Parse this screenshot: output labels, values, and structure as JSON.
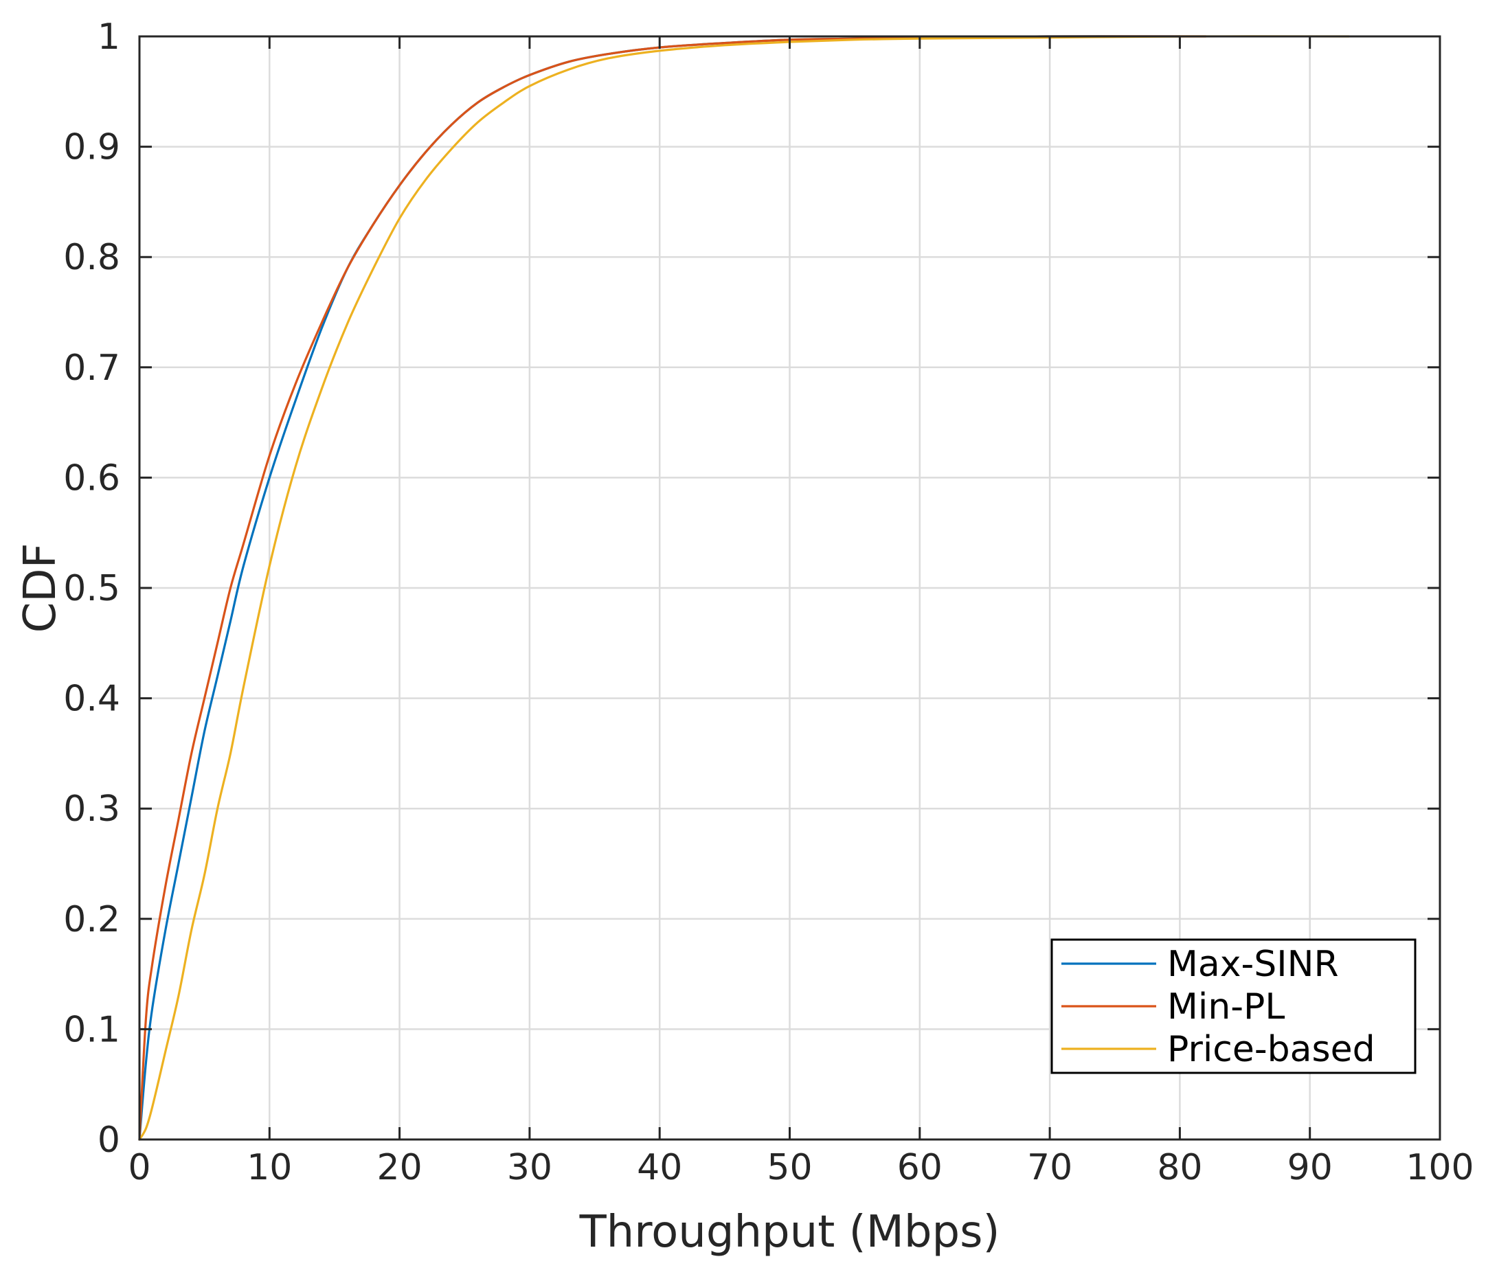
{
  "chart_data": {
    "type": "line",
    "title": "",
    "xlabel": "Throughput (Mbps)",
    "ylabel": "CDF",
    "xlim": [
      0,
      100
    ],
    "ylim": [
      0,
      1
    ],
    "xticks": [
      0,
      10,
      20,
      30,
      40,
      50,
      60,
      70,
      80,
      90,
      100
    ],
    "xtick_labels": [
      "0",
      "10",
      "20",
      "30",
      "40",
      "50",
      "60",
      "70",
      "80",
      "90",
      "100"
    ],
    "yticks": [
      0,
      0.1,
      0.2,
      0.3,
      0.4,
      0.5,
      0.6,
      0.7,
      0.8,
      0.9,
      1
    ],
    "ytick_labels": [
      "0",
      "0.1",
      "0.2",
      "0.3",
      "0.4",
      "0.5",
      "0.6",
      "0.7",
      "0.8",
      "0.9",
      "1"
    ],
    "grid": true,
    "legend_position": "bottom-right",
    "series": [
      {
        "name": "Max-SINR",
        "color": "#0072BD",
        "x": [
          0,
          0.5,
          1,
          2,
          3,
          4,
          5,
          6,
          7,
          8,
          10,
          12,
          14,
          16,
          18,
          20,
          22,
          24,
          26,
          28,
          30,
          33,
          36,
          40,
          45,
          50,
          55,
          60,
          70,
          80
        ],
        "y": [
          0,
          0.07,
          0.12,
          0.19,
          0.25,
          0.31,
          0.37,
          0.42,
          0.47,
          0.52,
          0.6,
          0.67,
          0.735,
          0.79,
          0.83,
          0.865,
          0.895,
          0.92,
          0.94,
          0.954,
          0.965,
          0.977,
          0.984,
          0.99,
          0.994,
          0.997,
          0.998,
          0.999,
          1.0,
          1.0
        ]
      },
      {
        "name": "Min-PL",
        "color": "#D95319",
        "x": [
          0,
          0.5,
          1,
          2,
          3,
          4,
          5,
          6,
          7,
          8,
          10,
          12,
          14,
          16,
          18,
          20,
          22,
          24,
          26,
          28,
          30,
          33,
          36,
          40,
          45,
          50,
          55,
          60,
          70,
          82
        ],
        "y": [
          0,
          0.11,
          0.16,
          0.23,
          0.29,
          0.35,
          0.4,
          0.45,
          0.5,
          0.54,
          0.62,
          0.685,
          0.74,
          0.79,
          0.83,
          0.865,
          0.895,
          0.92,
          0.94,
          0.954,
          0.965,
          0.977,
          0.984,
          0.99,
          0.994,
          0.997,
          0.998,
          0.999,
          1.0,
          1.0
        ]
      },
      {
        "name": "Price-based",
        "color": "#EDB120",
        "x": [
          0,
          0.5,
          1,
          2,
          3,
          4,
          5,
          6,
          7,
          8,
          10,
          12,
          14,
          16,
          18,
          20,
          22,
          24,
          26,
          28,
          30,
          33,
          36,
          40,
          45,
          50,
          55,
          60,
          70,
          80,
          93
        ],
        "y": [
          0,
          0.01,
          0.03,
          0.08,
          0.13,
          0.19,
          0.24,
          0.3,
          0.35,
          0.41,
          0.52,
          0.61,
          0.68,
          0.74,
          0.79,
          0.835,
          0.87,
          0.898,
          0.922,
          0.94,
          0.955,
          0.97,
          0.98,
          0.987,
          0.992,
          0.995,
          0.997,
          0.998,
          0.999,
          1.0,
          1.0
        ]
      }
    ]
  }
}
